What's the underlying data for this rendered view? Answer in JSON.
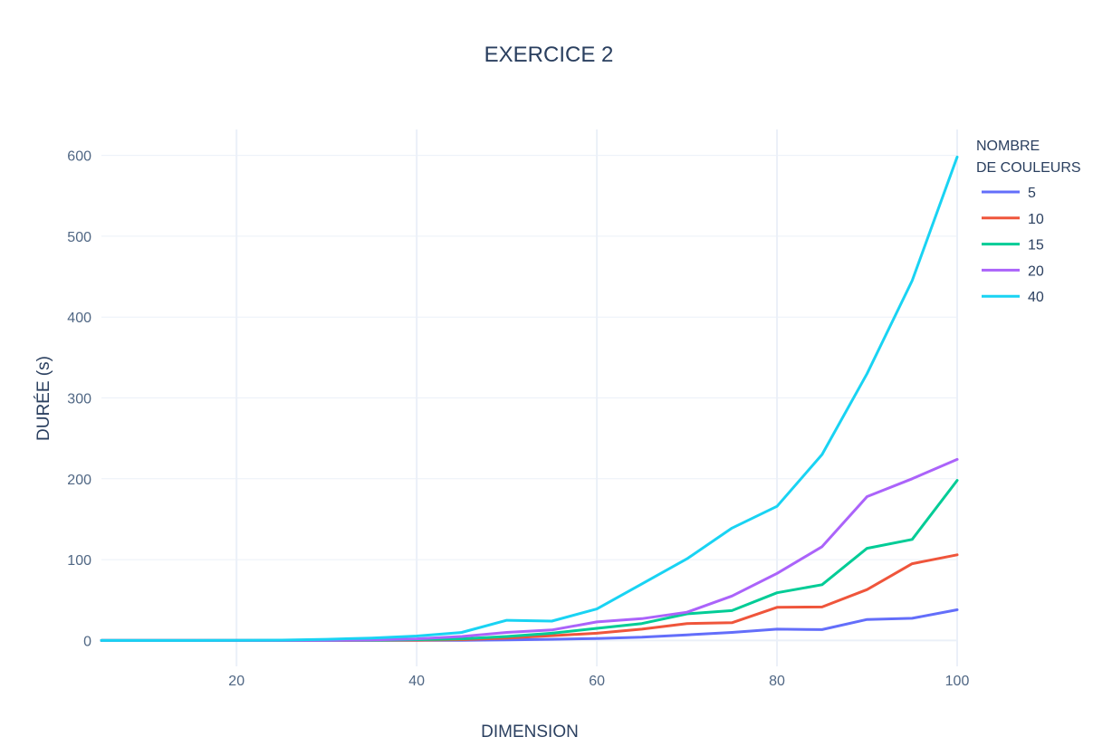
{
  "chart_data": {
    "type": "line",
    "title": "EXERCICE 2",
    "xlabel": "DIMENSION",
    "ylabel": "DURÉE (s)",
    "xlim": [
      5,
      100
    ],
    "ylim": [
      -32,
      632
    ],
    "xticks": [
      20,
      40,
      60,
      80,
      100
    ],
    "yticks": [
      0,
      100,
      200,
      300,
      400,
      500,
      600
    ],
    "grid": true,
    "legend": {
      "title_lines": [
        "NOMBRE",
        "DE COULEURS"
      ],
      "placement": "top-right, outside plot"
    },
    "x": [
      5,
      10,
      15,
      20,
      25,
      30,
      35,
      40,
      45,
      50,
      55,
      60,
      65,
      70,
      75,
      80,
      85,
      90,
      95,
      100
    ],
    "series": [
      {
        "name": "5",
        "color": "#636efa",
        "values": [
          0,
          0,
          0,
          0,
          0,
          0,
          0.1,
          0.2,
          0.3,
          0.8,
          1.5,
          2.5,
          4,
          7,
          10,
          14,
          13.5,
          26,
          27.5,
          38
        ]
      },
      {
        "name": "10",
        "color": "#ef553b",
        "values": [
          0,
          0,
          0,
          0,
          0,
          0.1,
          0.2,
          0.4,
          1,
          3,
          6,
          9,
          14,
          21,
          22,
          41,
          41.5,
          63,
          95,
          106
        ]
      },
      {
        "name": "15",
        "color": "#00cc96",
        "values": [
          0,
          0,
          0,
          0,
          0,
          0.2,
          0.4,
          1,
          2,
          5,
          9,
          15,
          21,
          33,
          37,
          59,
          69,
          114,
          125,
          198
        ]
      },
      {
        "name": "20",
        "color": "#ab63fa",
        "values": [
          0,
          0,
          0,
          0,
          0,
          0.3,
          0.8,
          2,
          5,
          10,
          13,
          23,
          27,
          35,
          55,
          83,
          116,
          178,
          200,
          224
        ]
      },
      {
        "name": "40",
        "color": "#19d3f3",
        "values": [
          0,
          0,
          0,
          0.2,
          0.5,
          1.5,
          3,
          5.5,
          10,
          25,
          24,
          39,
          70,
          101,
          139,
          166,
          230,
          330,
          445,
          598
        ]
      }
    ]
  }
}
